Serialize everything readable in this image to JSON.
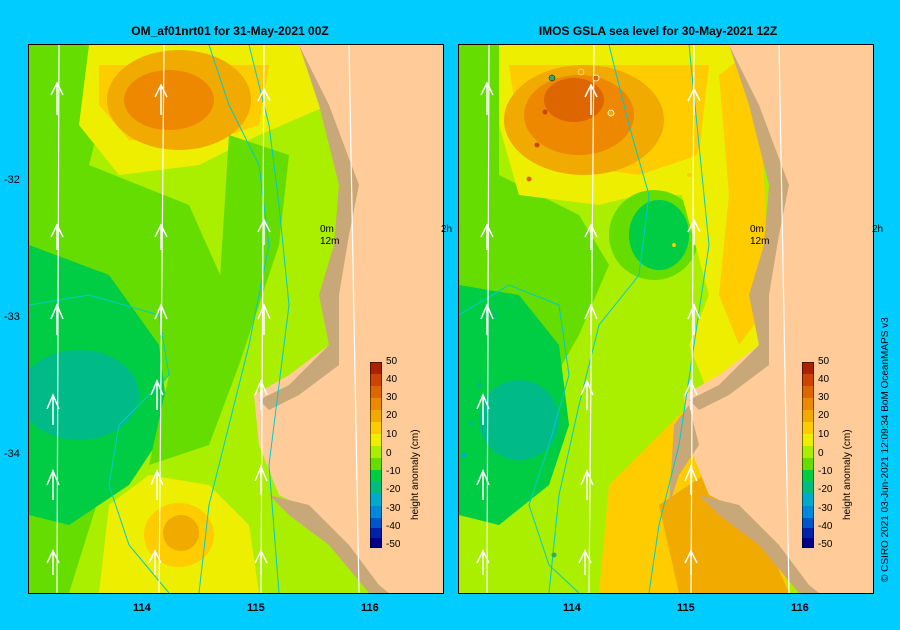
{
  "panels": [
    {
      "title": "OM_af01nrt01  for 31-May-2021 00Z"
    },
    {
      "title": "IMOS  GSLA sea level   for 30-May-2021 12Z"
    }
  ],
  "y_ticks": [
    "-32",
    "-33",
    "-34"
  ],
  "x_ticks": [
    "114",
    "115",
    "116"
  ],
  "colorbar": {
    "title": "height anomaly (cm)",
    "labels": [
      "50",
      "40",
      "30",
      "20",
      "10",
      "0",
      "-10",
      "-20",
      "-30",
      "-40",
      "-50"
    ],
    "colors": [
      "#aa2200",
      "#cc4400",
      "#dd6600",
      "#ee8800",
      "#f0aa00",
      "#ffcc00",
      "#eeee00",
      "#aaee00",
      "#66dd00",
      "#00cc44",
      "#00bb88",
      "#00aacc",
      "#0088dd",
      "#0055cc",
      "#0022aa",
      "#000088"
    ]
  },
  "overlay_text": {
    "depth_top": "0m",
    "depth_bottom": "12m",
    "hour": "2h"
  },
  "credit": "© CSIRO 2021   03-Jun-2021 12:09:34 BoM OceanMAPS v3"
}
